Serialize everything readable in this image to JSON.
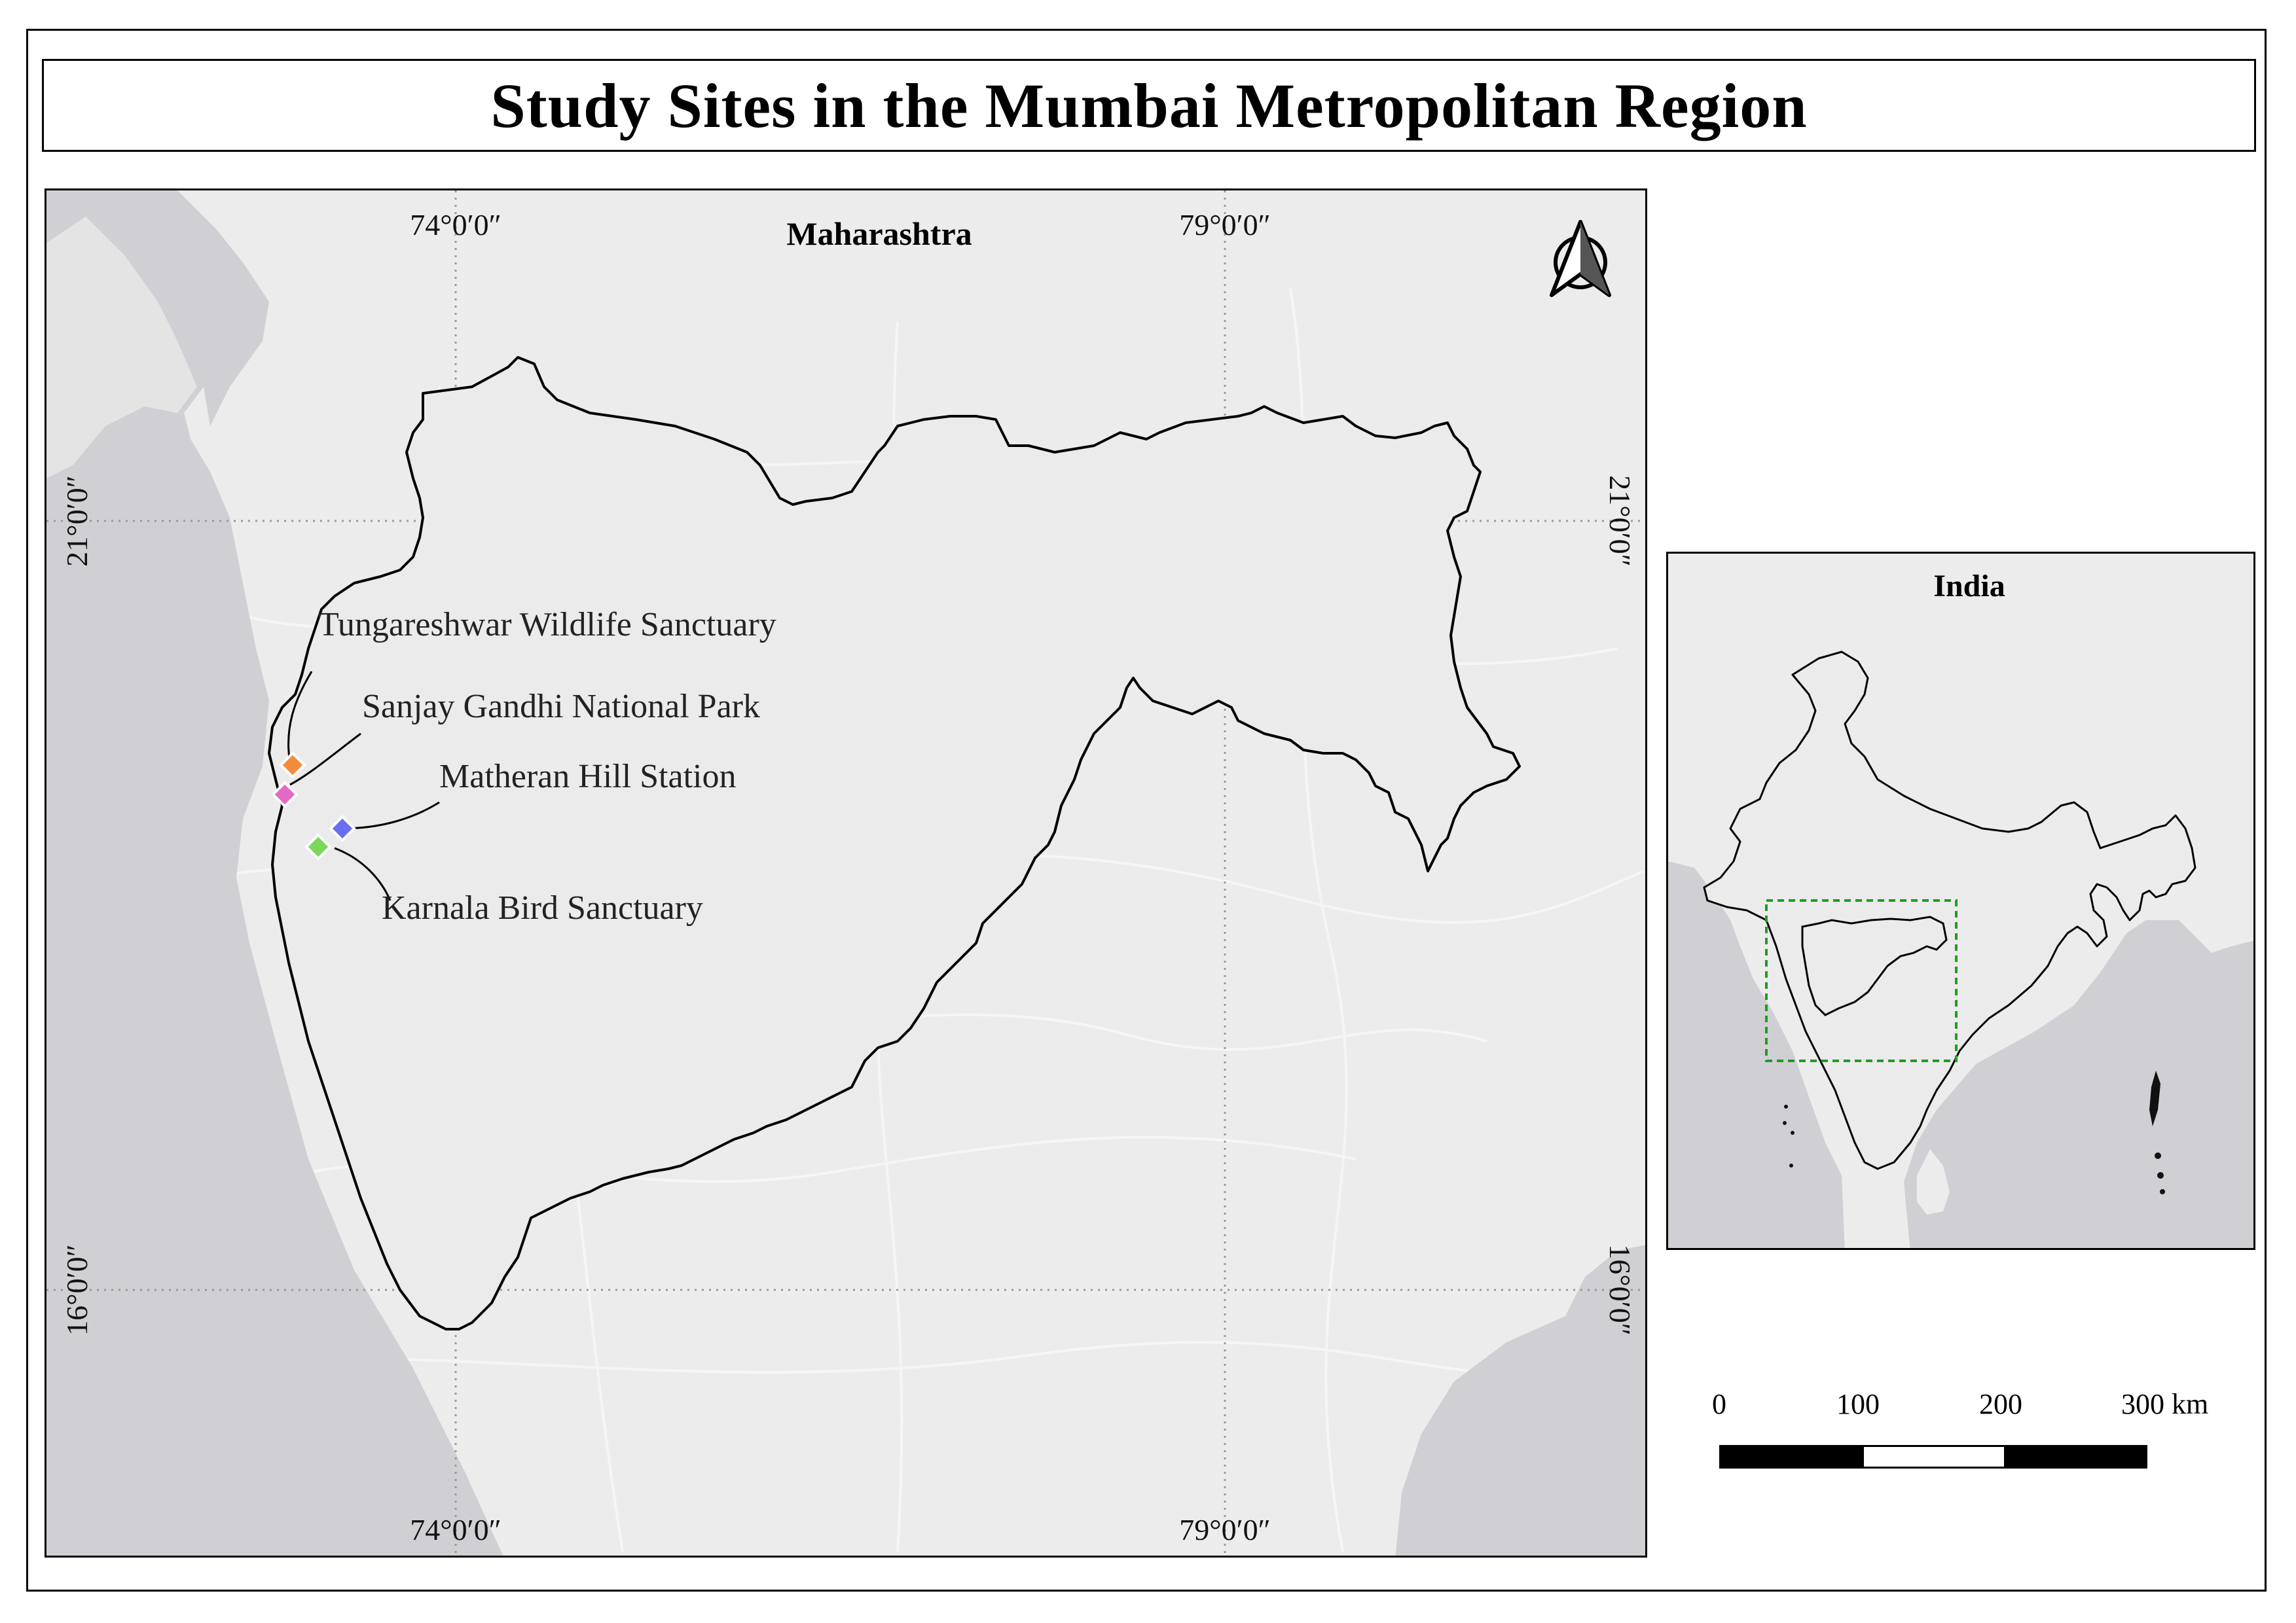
{
  "title": "Study Sites in the Mumbai Metropolitan Region",
  "main_map": {
    "region_label": "Maharashtra",
    "graticule": {
      "top_lon_left": "74°0′0″",
      "top_lon_right": "79°0′0″",
      "bottom_lon_left": "74°0′0″",
      "bottom_lon_right": "79°0′0″",
      "left_lat_north": "21°0′0″",
      "left_lat_south": "16°0′0″",
      "right_lat_north": "21°0′0″",
      "right_lat_south": "16°0′0″"
    },
    "north_arrow_icon": "north-arrow-icon",
    "sites": [
      {
        "name": "Tungareshwar Wildlife Sanctuary",
        "color": "#f28c3c"
      },
      {
        "name": "Sanjay Gandhi National Park",
        "color": "#e36ac4"
      },
      {
        "name": "Matheran Hill Station",
        "color": "#6a6ef0"
      },
      {
        "name": "Karnala Bird Sanctuary",
        "color": "#7dd85a"
      }
    ]
  },
  "inset_map": {
    "title": "India",
    "extent_box_color": "#1e9e1e"
  },
  "scale_bar": {
    "labels": [
      "0",
      "100",
      "200",
      "300 km"
    ]
  },
  "colors": {
    "land": "#ececec",
    "water": "#d0d0d4",
    "boundary": "#000000"
  }
}
